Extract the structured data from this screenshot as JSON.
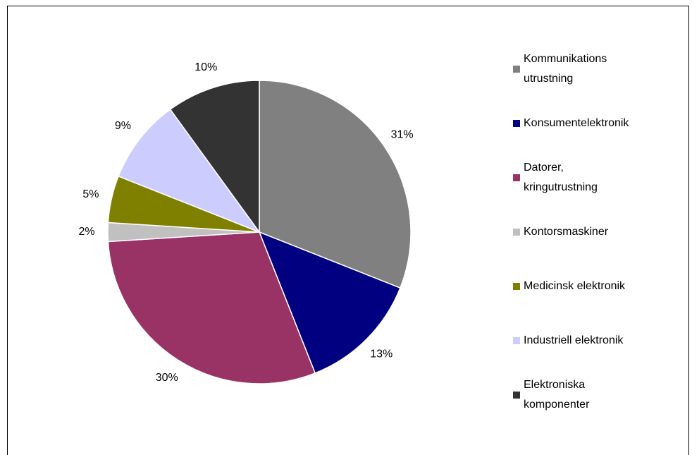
{
  "chart_data": {
    "type": "pie",
    "categories": [
      "Kommunikations utrustning",
      "Konsumentelektronik",
      "Datorer, kringutrustning",
      "Kontorsmaskiner",
      "Medicinsk elektronik",
      "Industriell elektronik",
      "Elektroniska komponenter"
    ],
    "values": [
      31,
      13,
      30,
      2,
      5,
      9,
      10
    ],
    "value_labels": [
      "31%",
      "13%",
      "30%",
      "2%",
      "5%",
      "9%",
      "10%"
    ],
    "colors": [
      "#808080",
      "#000080",
      "#993366",
      "#c0c0c0",
      "#808000",
      "#ccccff",
      "#333333"
    ],
    "legend": "right"
  }
}
